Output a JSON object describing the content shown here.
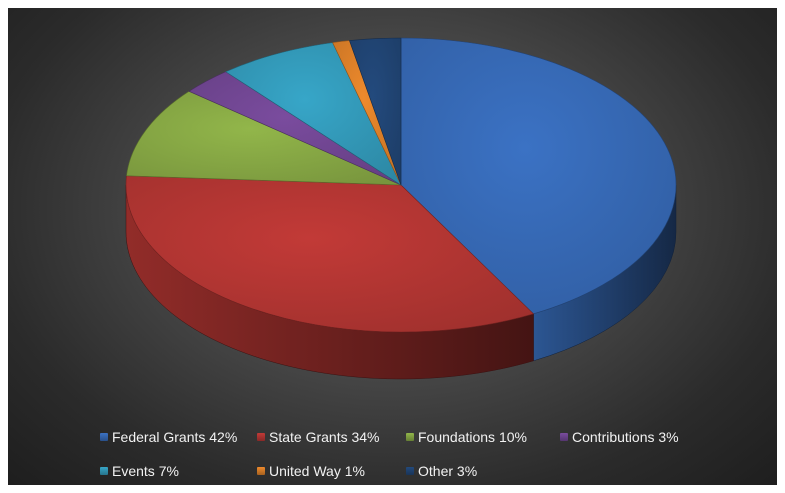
{
  "chart_data": {
    "type": "pie",
    "title": "",
    "style": "3d",
    "categories": [
      "Federal Grants",
      "State Grants",
      "Foundations",
      "Contributions",
      "Events",
      "United Way",
      "Other"
    ],
    "values": [
      42,
      34,
      10,
      3,
      7,
      1,
      3
    ],
    "labels": [
      "Federal Grants 42%",
      "State Grants 34%",
      "Foundations 10%",
      "Contributions 3%",
      "Events 7%",
      "United Way 1%",
      "Other 3%"
    ],
    "colors": [
      "#3b72c4",
      "#c23a37",
      "#92b64a",
      "#7a4c9e",
      "#37a6c8",
      "#ee8a2c",
      "#234a7d"
    ],
    "legend_position": "bottom"
  }
}
